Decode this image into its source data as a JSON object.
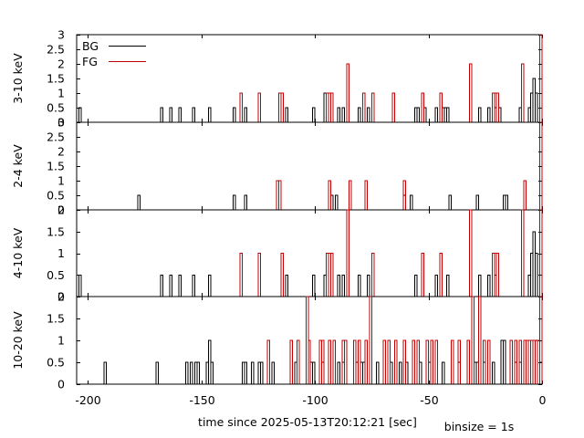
{
  "figure": {
    "xlabel": "time since 2025-05-13T20:12:21 [sec]",
    "binsize_label": "binsize = 1s"
  },
  "legend": {
    "bg_label": "BG",
    "fg_label": "FG",
    "bg_color": "#000000",
    "fg_color": "#c00000"
  },
  "chart_data": [
    {
      "type": "step",
      "panel": "3-10 keV",
      "ylabel": "3-10 keV",
      "xlim": [
        -205,
        0
      ],
      "ylim": [
        0,
        3
      ],
      "xticks": [
        -200,
        -150,
        -100,
        -50,
        0
      ],
      "yticks": [
        0,
        0.5,
        1,
        1.5,
        2,
        2.5,
        3
      ],
      "ytick_labels": [
        "0",
        "0.5",
        "1",
        "1.5",
        "2",
        "2.5",
        "3"
      ],
      "legend_position": "top-left",
      "series": [
        {
          "name": "BG",
          "color": "#000000",
          "events": [
            [
              -204,
              0.5
            ],
            [
              -168,
              0.5
            ],
            [
              -164,
              0.5
            ],
            [
              -160,
              0.5
            ],
            [
              -154,
              0.5
            ],
            [
              -147,
              0.5
            ],
            [
              -136,
              0.5
            ],
            [
              -131,
              0.5
            ],
            [
              -113,
              0.5
            ],
            [
              -101,
              0.5
            ],
            [
              -96,
              1
            ],
            [
              -90,
              0.5
            ],
            [
              -88,
              0.5
            ],
            [
              -81,
              0.5
            ],
            [
              -77,
              0.5
            ],
            [
              -56,
              0.5
            ],
            [
              -55,
              0.5
            ],
            [
              -52,
              0.5
            ],
            [
              -47,
              0.5
            ],
            [
              -44,
              0.5
            ],
            [
              -43,
              0.5
            ],
            [
              -42,
              0.5
            ],
            [
              -28,
              0.5
            ],
            [
              -24,
              0.5
            ],
            [
              -21,
              0.5
            ],
            [
              -19,
              0.5
            ],
            [
              -10,
              0.5
            ],
            [
              -6,
              0.5
            ],
            [
              -5,
              1
            ],
            [
              -4,
              1.5
            ],
            [
              -3,
              1
            ]
          ]
        },
        {
          "name": "FG",
          "color": "#c00000",
          "events": [
            [
              -133,
              1
            ],
            [
              -125,
              1
            ],
            [
              -116,
              1
            ],
            [
              -115,
              1
            ],
            [
              -95,
              1
            ],
            [
              -94,
              1
            ],
            [
              -93,
              1
            ],
            [
              -86,
              2
            ],
            [
              -79,
              1
            ],
            [
              -75,
              1
            ],
            [
              -66,
              1
            ],
            [
              -53,
              1
            ],
            [
              -45,
              1
            ],
            [
              -32,
              2
            ],
            [
              -22,
              1
            ],
            [
              -21,
              1
            ],
            [
              -20,
              1
            ],
            [
              -9,
              2
            ],
            [
              -1,
              3
            ]
          ]
        }
      ]
    },
    {
      "type": "step",
      "panel": "2-4 keV",
      "ylabel": "2-4 keV",
      "xlim": [
        -205,
        0
      ],
      "ylim": [
        0,
        3
      ],
      "xticks": [
        -200,
        -150,
        -100,
        -50,
        0
      ],
      "yticks": [
        0,
        0.5,
        1,
        1.5,
        2,
        2.5,
        3
      ],
      "ytick_labels": [
        "0",
        "0.5",
        "1",
        "1.5",
        "2",
        "2.5",
        "3"
      ],
      "series": [
        {
          "name": "BG",
          "color": "#000000",
          "events": [
            [
              -178,
              0.5
            ],
            [
              -136,
              0.5
            ],
            [
              -131,
              0.5
            ],
            [
              -93,
              0.5
            ],
            [
              -91,
              0.5
            ],
            [
              -61,
              0.5
            ],
            [
              -58,
              0.5
            ],
            [
              -41,
              0.5
            ],
            [
              -29,
              0.5
            ],
            [
              -17,
              0.5
            ],
            [
              -16,
              0.5
            ]
          ]
        },
        {
          "name": "FG",
          "color": "#c00000",
          "events": [
            [
              -117,
              1
            ],
            [
              -116,
              1
            ],
            [
              -94,
              1
            ],
            [
              -85,
              1
            ],
            [
              -78,
              1
            ],
            [
              -61,
              1
            ],
            [
              -8,
              1
            ],
            [
              -1,
              3
            ]
          ]
        }
      ]
    },
    {
      "type": "step",
      "panel": "4-10 keV",
      "ylabel": "4-10 keV",
      "xlim": [
        -205,
        0
      ],
      "ylim": [
        0,
        2
      ],
      "xticks": [
        -200,
        -150,
        -100,
        -50,
        0
      ],
      "yticks": [
        0,
        0.5,
        1,
        1.5,
        2
      ],
      "ytick_labels": [
        "0",
        "0.5",
        "1",
        "1.5",
        "2"
      ],
      "series": [
        {
          "name": "BG",
          "color": "#000000",
          "events": [
            [
              -204,
              0.5
            ],
            [
              -168,
              0.5
            ],
            [
              -164,
              0.5
            ],
            [
              -160,
              0.5
            ],
            [
              -154,
              0.5
            ],
            [
              -147,
              0.5
            ],
            [
              -113,
              0.5
            ],
            [
              -101,
              0.5
            ],
            [
              -96,
              0.5
            ],
            [
              -90,
              0.5
            ],
            [
              -88,
              0.5
            ],
            [
              -81,
              0.5
            ],
            [
              -77,
              0.5
            ],
            [
              -56,
              0.5
            ],
            [
              -47,
              0.5
            ],
            [
              -42,
              0.5
            ],
            [
              -28,
              0.5
            ],
            [
              -24,
              0.5
            ],
            [
              -21,
              0.5
            ],
            [
              -6,
              0.5
            ],
            [
              -5,
              1
            ],
            [
              -4,
              1.5
            ],
            [
              -3,
              1
            ],
            [
              -1,
              2
            ]
          ]
        },
        {
          "name": "FG",
          "color": "#c00000",
          "events": [
            [
              -133,
              1
            ],
            [
              -125,
              1
            ],
            [
              -115,
              1
            ],
            [
              -95,
              1
            ],
            [
              -94,
              1
            ],
            [
              -93,
              1
            ],
            [
              -86,
              2
            ],
            [
              -75,
              1
            ],
            [
              -53,
              1
            ],
            [
              -45,
              1
            ],
            [
              -32,
              2
            ],
            [
              -22,
              1
            ],
            [
              -21,
              1
            ],
            [
              -20,
              1
            ],
            [
              -9,
              2
            ],
            [
              -1,
              2
            ]
          ]
        }
      ]
    },
    {
      "type": "step",
      "panel": "10-20 keV",
      "ylabel": "10-20 keV",
      "xlim": [
        -205,
        0
      ],
      "ylim": [
        0,
        2
      ],
      "xticks": [
        -200,
        -150,
        -100,
        -50,
        0
      ],
      "xtick_labels": [
        "-200",
        "-150",
        "-100",
        "-50",
        "0"
      ],
      "yticks": [
        0,
        0.5,
        1,
        1.5,
        2
      ],
      "ytick_labels": [
        "0",
        "0.5",
        "1",
        "1.5",
        "2"
      ],
      "series": [
        {
          "name": "BG",
          "color": "#000000",
          "events": [
            [
              -193,
              0.5
            ],
            [
              -170,
              0.5
            ],
            [
              -157,
              0.5
            ],
            [
              -155,
              0.5
            ],
            [
              -153,
              0.5
            ],
            [
              -152,
              0.5
            ],
            [
              -148,
              0.5
            ],
            [
              -147,
              1
            ],
            [
              -146,
              0.5
            ],
            [
              -132,
              0.5
            ],
            [
              -131,
              0.5
            ],
            [
              -128,
              0.5
            ],
            [
              -125,
              0.5
            ],
            [
              -124,
              0.5
            ],
            [
              -119,
              0.5
            ],
            [
              -109,
              0.5
            ],
            [
              -102,
              0.5
            ],
            [
              -101,
              0.5
            ],
            [
              -97,
              0.5
            ],
            [
              -90,
              0.5
            ],
            [
              -88,
              0.5
            ],
            [
              -82,
              0.5
            ],
            [
              -80,
              0.5
            ],
            [
              -79,
              0.5
            ],
            [
              -73,
              0.5
            ],
            [
              -67,
              0.5
            ],
            [
              -63,
              0.5
            ],
            [
              -60,
              0.5
            ],
            [
              -54,
              0.5
            ],
            [
              -50,
              0.5
            ],
            [
              -44,
              0.5
            ],
            [
              -37,
              0.5
            ],
            [
              -30,
              0.5
            ],
            [
              -29,
              0.5
            ],
            [
              -26,
              0.5
            ],
            [
              -22,
              0.5
            ],
            [
              -18,
              1
            ],
            [
              -17,
              1
            ],
            [
              -12,
              0.5
            ],
            [
              -10,
              0.5
            ],
            [
              -3,
              1
            ],
            [
              -1,
              0.5
            ]
          ]
        },
        {
          "name": "FG",
          "color": "#c00000",
          "events": [
            [
              -121,
              1
            ],
            [
              -111,
              1
            ],
            [
              -108,
              1
            ],
            [
              -104,
              2
            ],
            [
              -103,
              1
            ],
            [
              -98,
              1
            ],
            [
              -97,
              1
            ],
            [
              -94,
              1
            ],
            [
              -92,
              1
            ],
            [
              -88,
              1
            ],
            [
              -87,
              1
            ],
            [
              -83,
              1
            ],
            [
              -81,
              1
            ],
            [
              -78,
              1
            ],
            [
              -76,
              2
            ],
            [
              -70,
              1
            ],
            [
              -68,
              1
            ],
            [
              -65,
              1
            ],
            [
              -61,
              1
            ],
            [
              -57,
              1
            ],
            [
              -55,
              1
            ],
            [
              -51,
              1
            ],
            [
              -49,
              1
            ],
            [
              -47,
              1
            ],
            [
              -40,
              1
            ],
            [
              -37,
              1
            ],
            [
              -33,
              1
            ],
            [
              -31,
              2
            ],
            [
              -28,
              2
            ],
            [
              -26,
              1
            ],
            [
              -24,
              1
            ],
            [
              -14,
              1
            ],
            [
              -12,
              1
            ],
            [
              -10,
              1
            ],
            [
              -8,
              1
            ],
            [
              -7,
              1
            ],
            [
              -6,
              1
            ],
            [
              -5,
              1
            ],
            [
              -4,
              1
            ],
            [
              -2,
              1
            ],
            [
              -1,
              2
            ]
          ]
        }
      ]
    }
  ]
}
